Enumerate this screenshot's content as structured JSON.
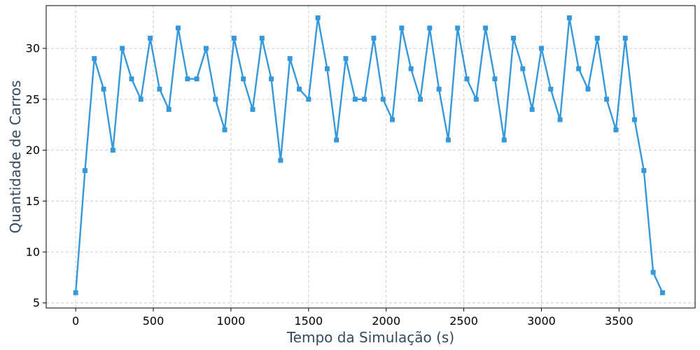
{
  "chart_data": {
    "type": "line",
    "title": "",
    "xlabel": "Tempo da Simulação (s)",
    "ylabel": "Quantidade de Carros",
    "xlim": [
      -190,
      3990
    ],
    "ylim": [
      4.5,
      34.2
    ],
    "xticks": [
      0,
      500,
      1000,
      1500,
      2000,
      2500,
      3000,
      3500
    ],
    "yticks": [
      5,
      10,
      15,
      20,
      25,
      30
    ],
    "grid": true,
    "legend": "none",
    "series": [
      {
        "marker": "square",
        "color": "#3498db",
        "x": [
          0,
          60,
          120,
          180,
          240,
          300,
          360,
          420,
          480,
          540,
          600,
          660,
          720,
          780,
          840,
          900,
          960,
          1020,
          1080,
          1140,
          1200,
          1260,
          1320,
          1380,
          1440,
          1500,
          1560,
          1620,
          1680,
          1740,
          1800,
          1860,
          1920,
          1980,
          2040,
          2100,
          2160,
          2220,
          2280,
          2340,
          2400,
          2460,
          2520,
          2580,
          2640,
          2700,
          2760,
          2820,
          2880,
          2940,
          3000,
          3060,
          3120,
          3180,
          3240,
          3300,
          3360,
          3420,
          3480,
          3540,
          3600,
          3660,
          3720,
          3780
        ],
        "y": [
          6,
          18,
          29,
          26,
          20,
          30,
          27,
          25,
          31,
          26,
          24,
          32,
          27,
          27,
          30,
          25,
          22,
          31,
          27,
          24,
          31,
          27,
          19,
          29,
          26,
          25,
          33,
          28,
          21,
          29,
          25,
          25,
          31,
          25,
          23,
          32,
          28,
          25,
          32,
          26,
          21,
          32,
          27,
          25,
          32,
          27,
          21,
          31,
          28,
          24,
          30,
          26,
          23,
          33,
          28,
          26,
          31,
          25,
          22,
          31,
          23,
          18,
          8,
          6
        ]
      }
    ]
  },
  "colors": {
    "line": "#3498db",
    "axis_title": "#34495e",
    "grid": "#cccccc",
    "frame": "#000000"
  }
}
